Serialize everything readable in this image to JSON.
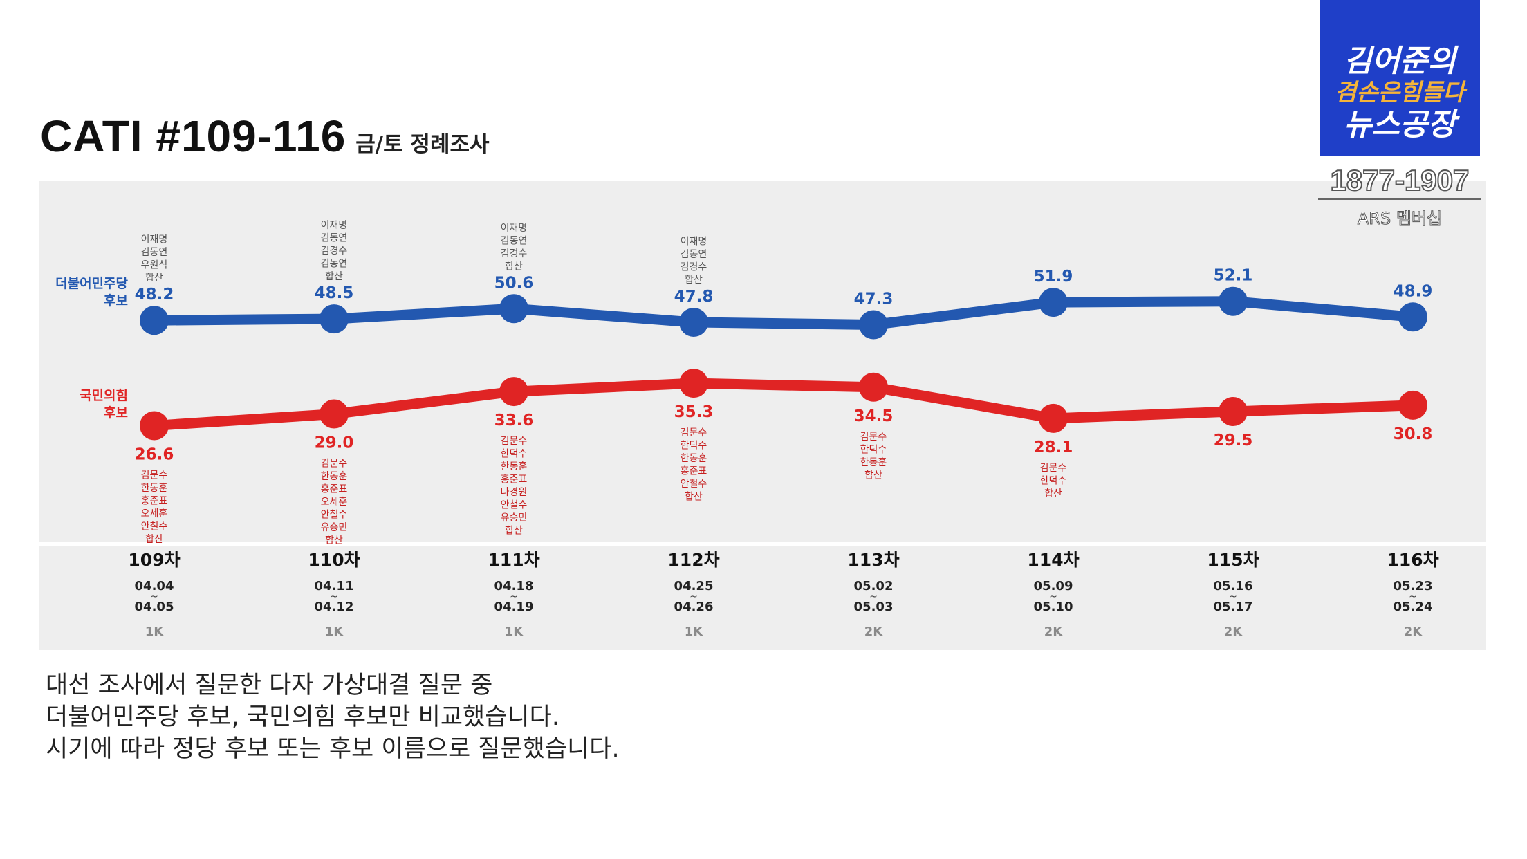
{
  "title": {
    "main": "CATI #109-116",
    "sub": "금/토 정례조사"
  },
  "logo": {
    "line1": "김어준의",
    "line2": "겸손은힘들다",
    "line3": "뉴스공장"
  },
  "phone": "1877-1907",
  "ars": "ARS 멤버십",
  "caption": [
    "대선 조사에서 질문한 다자 가상대결 질문 중",
    "더불어민주당 후보, 국민의힘 후보만 비교했습니다.",
    "시기에 따라 정당 후보 또는 후보 이름으로 질문했습니다."
  ],
  "colors": {
    "blue": "#2358b0",
    "red": "#e02424",
    "panel": "#eeeeee"
  },
  "chart_data": {
    "type": "line",
    "title": "CATI #109-116",
    "subtitle": "금/토 정례조사",
    "ylim": [
      20,
      60
    ],
    "grid": false,
    "categories": [
      "109차",
      "110차",
      "111차",
      "112차",
      "113차",
      "114차",
      "115차",
      "116차"
    ],
    "dates": [
      [
        "04.04",
        "04.05"
      ],
      [
        "04.11",
        "04.12"
      ],
      [
        "04.18",
        "04.19"
      ],
      [
        "04.25",
        "04.26"
      ],
      [
        "05.02",
        "05.03"
      ],
      [
        "05.09",
        "05.10"
      ],
      [
        "05.16",
        "05.17"
      ],
      [
        "05.23",
        "05.24"
      ]
    ],
    "sample": [
      "1K",
      "1K",
      "1K",
      "1K",
      "2K",
      "2K",
      "2K",
      "2K"
    ],
    "series": [
      {
        "name": "더불어민주당 후보",
        "name_lines": [
          "더불어민주당",
          "후보"
        ],
        "color": "#2358b0",
        "values": [
          48.2,
          48.5,
          50.6,
          47.8,
          47.3,
          51.9,
          52.1,
          48.9
        ],
        "labels": [
          "48.2",
          "48.5",
          "50.6",
          "47.8",
          "47.3",
          "51.9",
          "52.1",
          "48.9"
        ],
        "notes": [
          [
            "이재명",
            "김동연",
            "우원식",
            "합산"
          ],
          [
            "이재명",
            "김동연",
            "김경수",
            "김동연",
            "합산"
          ],
          [
            "이재명",
            "김동연",
            "김경수",
            "합산"
          ],
          [
            "이재명",
            "김동연",
            "김경수",
            "합산"
          ],
          [],
          [],
          [],
          []
        ]
      },
      {
        "name": "국민의힘 후보",
        "name_lines": [
          "국민의힘",
          "후보"
        ],
        "color": "#e02424",
        "values": [
          26.6,
          29.0,
          33.6,
          35.3,
          34.5,
          28.1,
          29.5,
          30.8
        ],
        "labels": [
          "26.6",
          "29.0",
          "33.6",
          "35.3",
          "34.5",
          "28.1",
          "29.5",
          "30.8"
        ],
        "notes": [
          [
            "김문수",
            "한동훈",
            "홍준표",
            "오세훈",
            "안철수",
            "합산"
          ],
          [
            "김문수",
            "한동훈",
            "홍준표",
            "오세훈",
            "안철수",
            "유승민",
            "합산"
          ],
          [
            "김문수",
            "한덕수",
            "한동훈",
            "홍준표",
            "나경원",
            "안철수",
            "유승민",
            "합산"
          ],
          [
            "김문수",
            "한덕수",
            "한동훈",
            "홍준표",
            "안철수",
            "합산"
          ],
          [
            "김문수",
            "한덕수",
            "한동훈",
            "합산"
          ],
          [
            "김문수",
            "한덕수",
            "합산"
          ],
          [],
          []
        ]
      }
    ]
  }
}
